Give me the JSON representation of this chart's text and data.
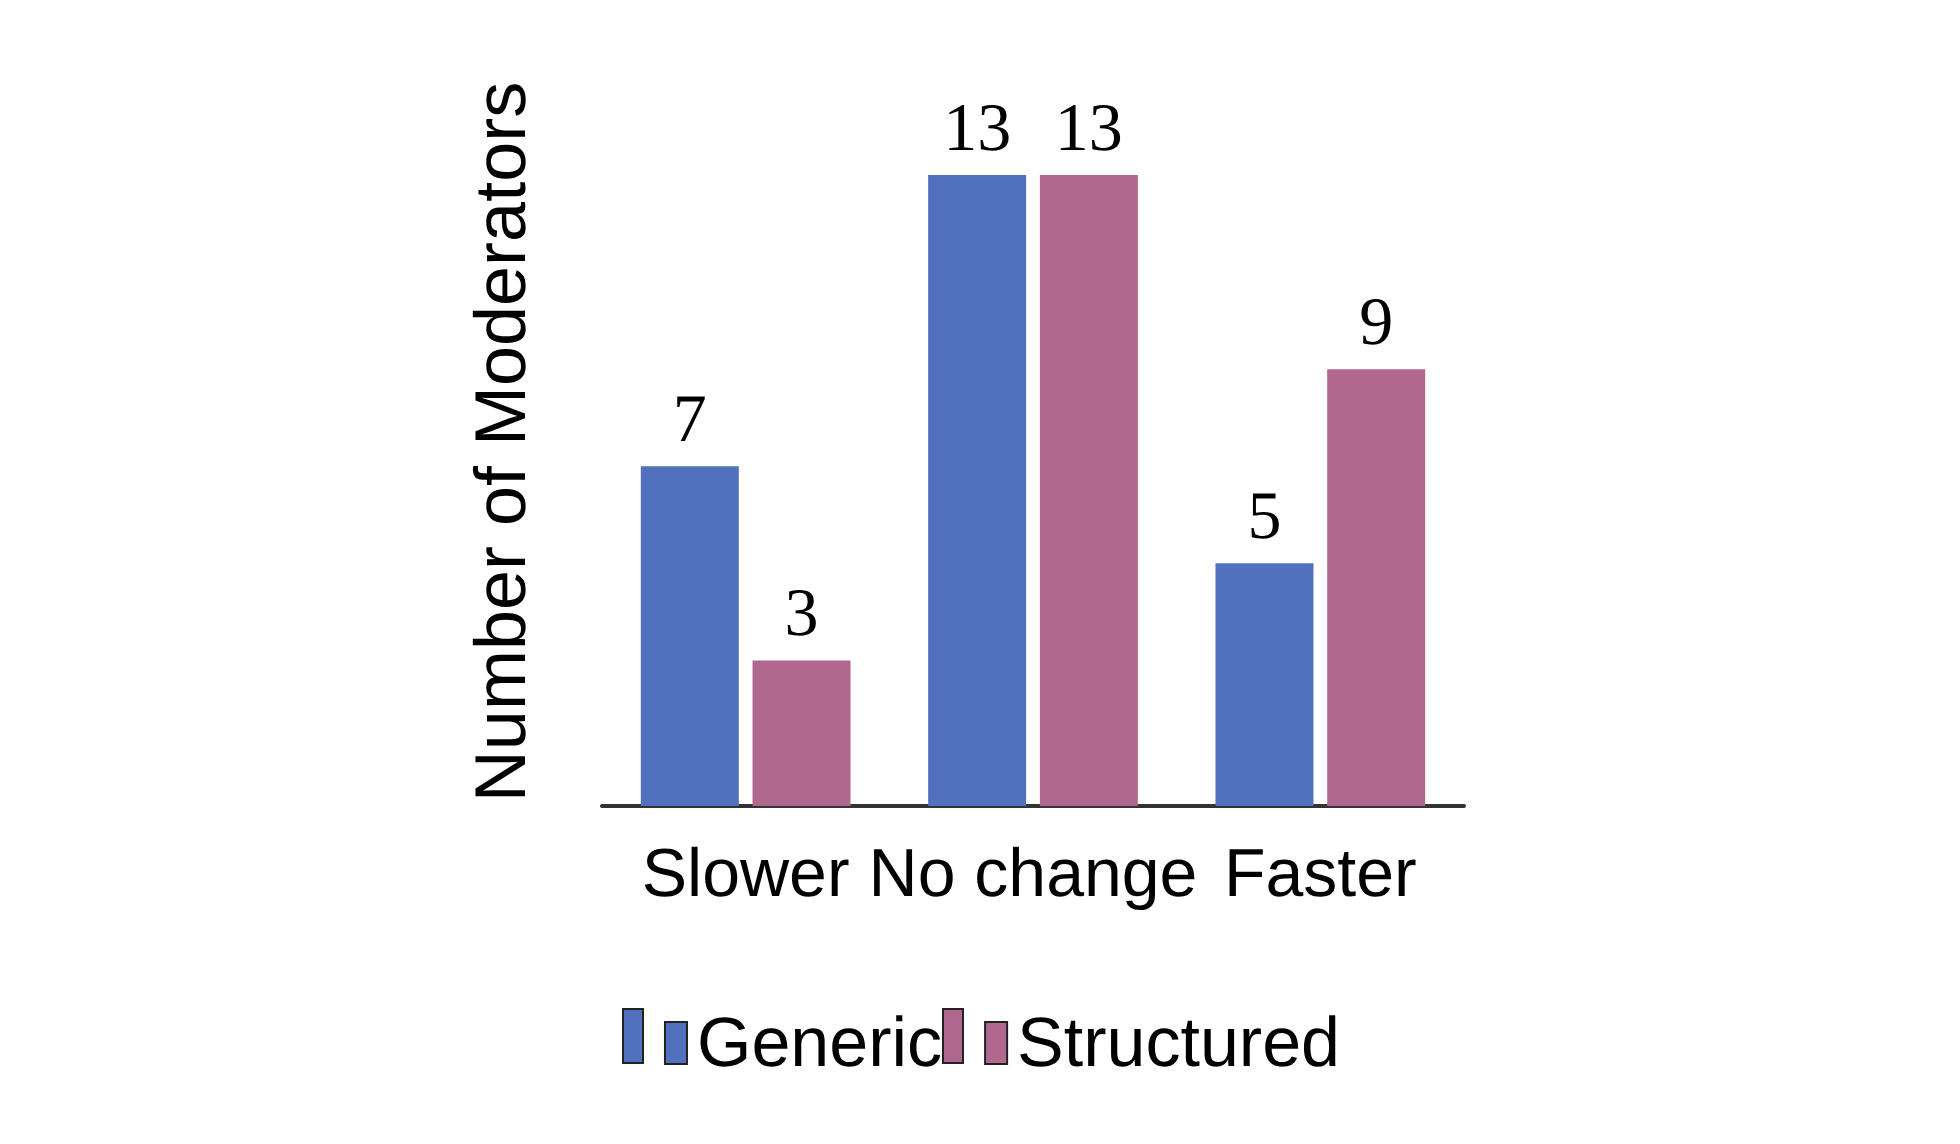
{
  "chart_data": {
    "type": "bar",
    "ylabel": "Number of Moderators",
    "categories": [
      "Slower",
      "No change",
      "Faster"
    ],
    "series": [
      {
        "name": "Generic",
        "color": "#5171be",
        "values": [
          7,
          13,
          5
        ]
      },
      {
        "name": "Structured",
        "color": "#b1688f",
        "values": [
          3,
          13,
          9
        ]
      }
    ],
    "data_labels": true,
    "legend": "bottom",
    "grid": false
  }
}
